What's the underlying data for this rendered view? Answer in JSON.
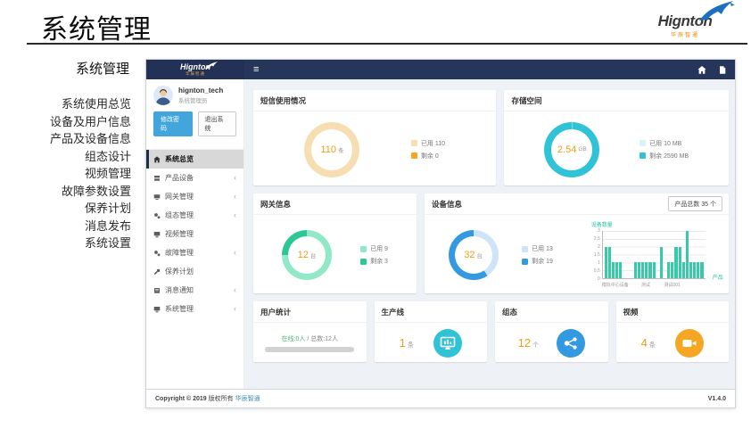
{
  "page": {
    "title": "系统管理"
  },
  "brand": {
    "name": "Hignton",
    "subtitle": "华辰智通"
  },
  "left_nav": {
    "title": "系统管理",
    "items": [
      "系统使用总览",
      "设备及用户信息",
      "产品及设备信息",
      "组态设计",
      "视频管理",
      "故障参数设置",
      "保养计划",
      "消息发布",
      "系统设置"
    ]
  },
  "app": {
    "navbar": {
      "brand": "Hignton",
      "brand_subtitle": "华辰智通",
      "menu_toggle": "≡"
    },
    "user": {
      "name": "hignton_tech",
      "role": "系统管理员",
      "change_password_label": "修改密码",
      "logout_label": "退出系统"
    },
    "sidebar": [
      {
        "label": "系统总览"
      },
      {
        "label": "产品设备"
      },
      {
        "label": "网关管理"
      },
      {
        "label": "组态管理"
      },
      {
        "label": "视频管理"
      },
      {
        "label": "故障管理"
      },
      {
        "label": "保养计划"
      },
      {
        "label": "消息通知"
      },
      {
        "label": "系统管理"
      }
    ],
    "cards": {
      "sms": {
        "title": "短信使用情况",
        "value": "110",
        "unit": "条"
      },
      "storage": {
        "title": "存储空间",
        "value": "2.54",
        "unit": "GB"
      },
      "gateway": {
        "title": "网关信息",
        "value": "12",
        "unit": "台"
      },
      "device": {
        "title": "设备信息",
        "value": "32",
        "unit": "台",
        "badge": "产品总数 35 个"
      },
      "users": {
        "title": "用户统计",
        "online": "在线:0人",
        "separator": " / ",
        "total": "总数:12人"
      },
      "production": {
        "title": "生产线",
        "value": "1",
        "unit": "条"
      },
      "configuration": {
        "title": "组态",
        "value": "12",
        "unit": "个"
      },
      "video": {
        "title": "视频",
        "value": "4",
        "unit": "条"
      }
    },
    "footer": {
      "copyright_bold": "Copyright © 2019",
      "copyright_rest": "版权所有",
      "company": "华辰智通",
      "version": "V1.4.0"
    }
  },
  "colors": {
    "accent_orange": "#f39c12",
    "navbar_navy": "#26365a",
    "link_blue": "#3c8dbc",
    "bar_teal": "#36caa9",
    "logo_orange": "#f08300",
    "logo_blue": "#1d6fc0"
  },
  "chart_data": [
    {
      "type": "pie",
      "title": "短信使用情况",
      "center_value": 110,
      "center_unit": "条",
      "legend_position": "right",
      "series": [
        {
          "name": "已用",
          "value": 110,
          "label": "已用 110",
          "color": "#f7ddb2"
        },
        {
          "name": "剩余",
          "value": 0,
          "label": "剩余 0",
          "color": "#f5a623"
        }
      ]
    },
    {
      "type": "pie",
      "title": "存储空间",
      "center_value": 2.54,
      "center_unit": "GB",
      "legend_position": "right",
      "series": [
        {
          "name": "已用",
          "value": 10,
          "label": "已用 10 MB",
          "color": "#d8f4f9"
        },
        {
          "name": "剩余",
          "value": 2590,
          "label": "剩余 2590 MB",
          "color": "#30c3d7"
        }
      ]
    },
    {
      "type": "pie",
      "title": "网关信息",
      "center_value": 12,
      "center_unit": "台",
      "legend_position": "right",
      "series": [
        {
          "name": "已用",
          "value": 9,
          "label": "已用 9",
          "color": "#90e8c6"
        },
        {
          "name": "剩余",
          "value": 3,
          "label": "剩余 3",
          "color": "#2dc795"
        }
      ]
    },
    {
      "type": "pie",
      "title": "设备信息",
      "center_value": 32,
      "center_unit": "台",
      "legend_position": "right",
      "series": [
        {
          "name": "已用",
          "value": 13,
          "label": "已用 13",
          "color": "#cfe4f6"
        },
        {
          "name": "剩余",
          "value": 19,
          "label": "剩余 19",
          "color": "#3399e0"
        }
      ]
    },
    {
      "type": "bar",
      "title": "产品设备数量",
      "ylabel": "设备数量",
      "xlabel": "产品",
      "ylim": [
        0,
        3
      ],
      "yticks": [
        0,
        0.5,
        1,
        1.5,
        2,
        2.5,
        3
      ],
      "grid": true,
      "x_tick_labels": [
        "模拟中心设备",
        "测试",
        "测试001"
      ],
      "color": "#36caa9",
      "total": 35,
      "total_label": "产品总数 35 个",
      "values": [
        2,
        2,
        1,
        1,
        1,
        0,
        0,
        0,
        1,
        1,
        1,
        1,
        1,
        1,
        0,
        2,
        0,
        1,
        1,
        2,
        2,
        1,
        3,
        1,
        1,
        1,
        1
      ]
    }
  ]
}
